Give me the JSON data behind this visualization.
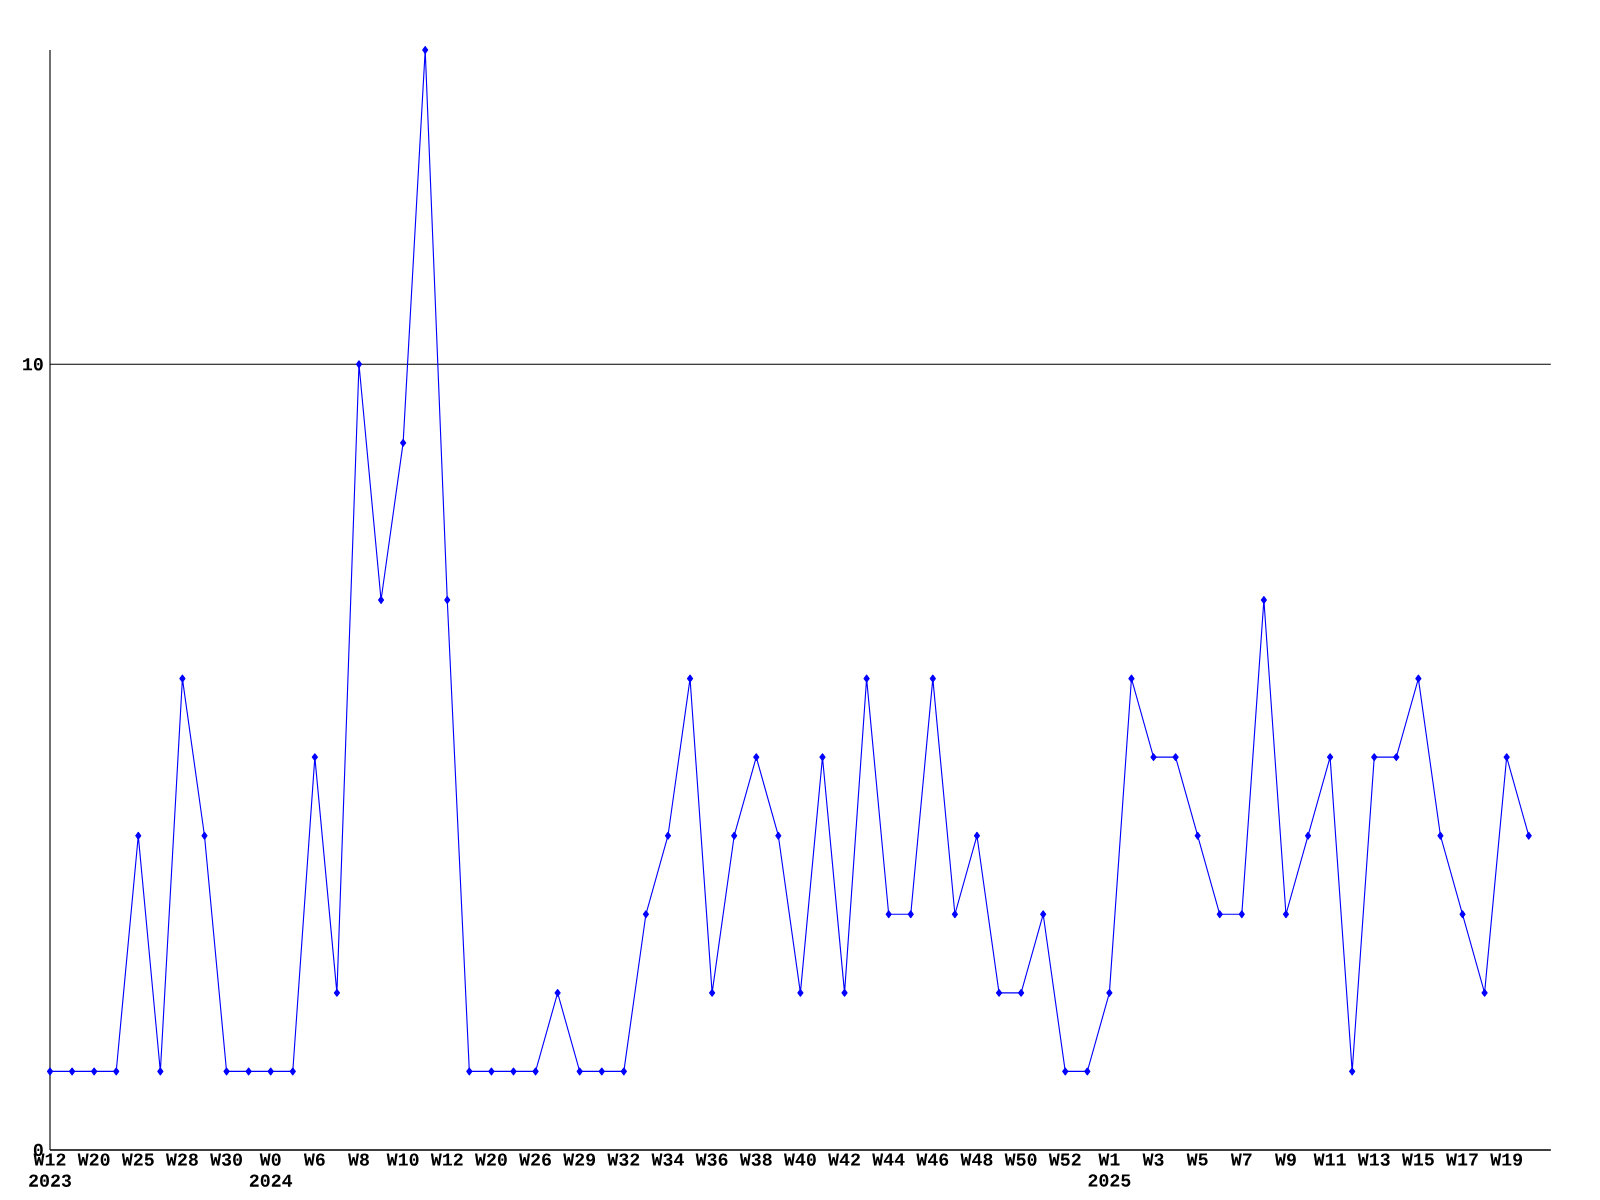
{
  "chart_data": {
    "type": "line",
    "categories": [
      "W12 2023",
      null,
      "W20",
      null,
      "W25",
      null,
      "W28",
      null,
      "W30",
      null,
      "W0 2024",
      null,
      "W6",
      null,
      "W8",
      null,
      "W10",
      null,
      "W12",
      null,
      "W20",
      null,
      "W26",
      null,
      "W29",
      null,
      "W32",
      null,
      "W34",
      null,
      "W36",
      null,
      "W38",
      null,
      "W40",
      null,
      "W42",
      null,
      "W44",
      null,
      "W46",
      null,
      "W48",
      null,
      "W50",
      null,
      "W52",
      null,
      "W1 2025",
      null,
      "W3",
      null,
      "W5",
      null,
      "W7",
      null,
      "W9",
      null,
      "W11",
      null,
      "W13",
      null,
      "W15",
      null,
      "W17",
      null,
      "W19",
      null
    ],
    "series": [
      {
        "color": "#0000ff",
        "values": [
          1,
          1,
          1,
          1,
          4,
          1,
          6,
          4,
          1,
          1,
          1,
          1,
          5,
          2,
          10,
          7,
          9,
          14,
          7,
          1,
          1,
          1,
          1,
          2,
          1,
          1,
          1,
          3,
          4,
          6,
          2,
          4,
          5,
          4,
          2,
          5,
          2,
          6,
          3,
          3,
          6,
          3,
          4,
          2,
          2,
          3,
          1,
          1,
          2,
          6,
          5,
          5,
          4,
          3,
          3,
          7,
          3,
          4,
          5,
          1,
          5,
          5,
          6,
          4,
          3,
          2,
          5,
          4
        ]
      }
    ],
    "ylim": [
      0,
      14
    ],
    "yticks": [
      0,
      10
    ],
    "grid": "y",
    "marker": "diamond",
    "line_style": "solid"
  }
}
